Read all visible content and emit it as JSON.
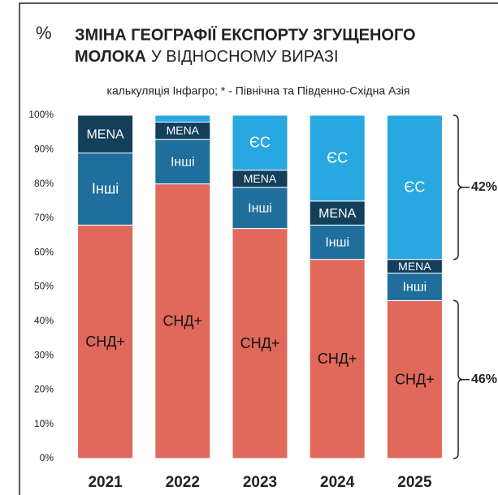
{
  "chart_data": {
    "type": "stacked_bar",
    "icon": "%",
    "title": [
      "ЗМІНА ГЕОГРАФІЇ ЕКСПОРТУ ЗГУЩЕНОГО",
      "МОЛОКА",
      "У ВІДНОСНОМУ ВИРАЗІ"
    ],
    "subtitle": "калькуляція Інфагро; * - Північна та Південно-Східна Азія",
    "categories": [
      "2021",
      "2022",
      "2023",
      "2024",
      "2025"
    ],
    "series": [
      {
        "name": "СНД+",
        "color": "#e0695b",
        "values": [
          68,
          80,
          67,
          58,
          46
        ]
      },
      {
        "name": "Інші",
        "color": "#1f6e9c",
        "values": [
          21,
          13,
          12,
          10,
          8
        ]
      },
      {
        "name": "MENA",
        "color": "#133f5b",
        "values": [
          11,
          5,
          5,
          7,
          4
        ]
      },
      {
        "name": "ЄС",
        "color": "#29a7e1",
        "values": [
          null,
          2,
          16,
          25,
          42
        ]
      }
    ],
    "ylim": [
      0,
      100
    ],
    "yticks": [
      {
        "value": 0,
        "label": "0%"
      },
      {
        "value": 10,
        "label": "10%"
      },
      {
        "value": 20,
        "label": "20%"
      },
      {
        "value": 30,
        "label": "30%"
      },
      {
        "value": 40,
        "label": "40%"
      },
      {
        "value": 50,
        "label": "50%"
      },
      {
        "value": 60,
        "label": "60%"
      },
      {
        "value": 70,
        "label": "70%"
      },
      {
        "value": 80,
        "label": "80%"
      },
      {
        "value": 90,
        "label": "90%"
      },
      {
        "value": 100,
        "label": "100%"
      }
    ],
    "annotations": [
      {
        "text": "42%",
        "range": [
          58,
          100
        ]
      },
      {
        "text": "46%",
        "range": [
          0,
          46
        ]
      }
    ]
  }
}
